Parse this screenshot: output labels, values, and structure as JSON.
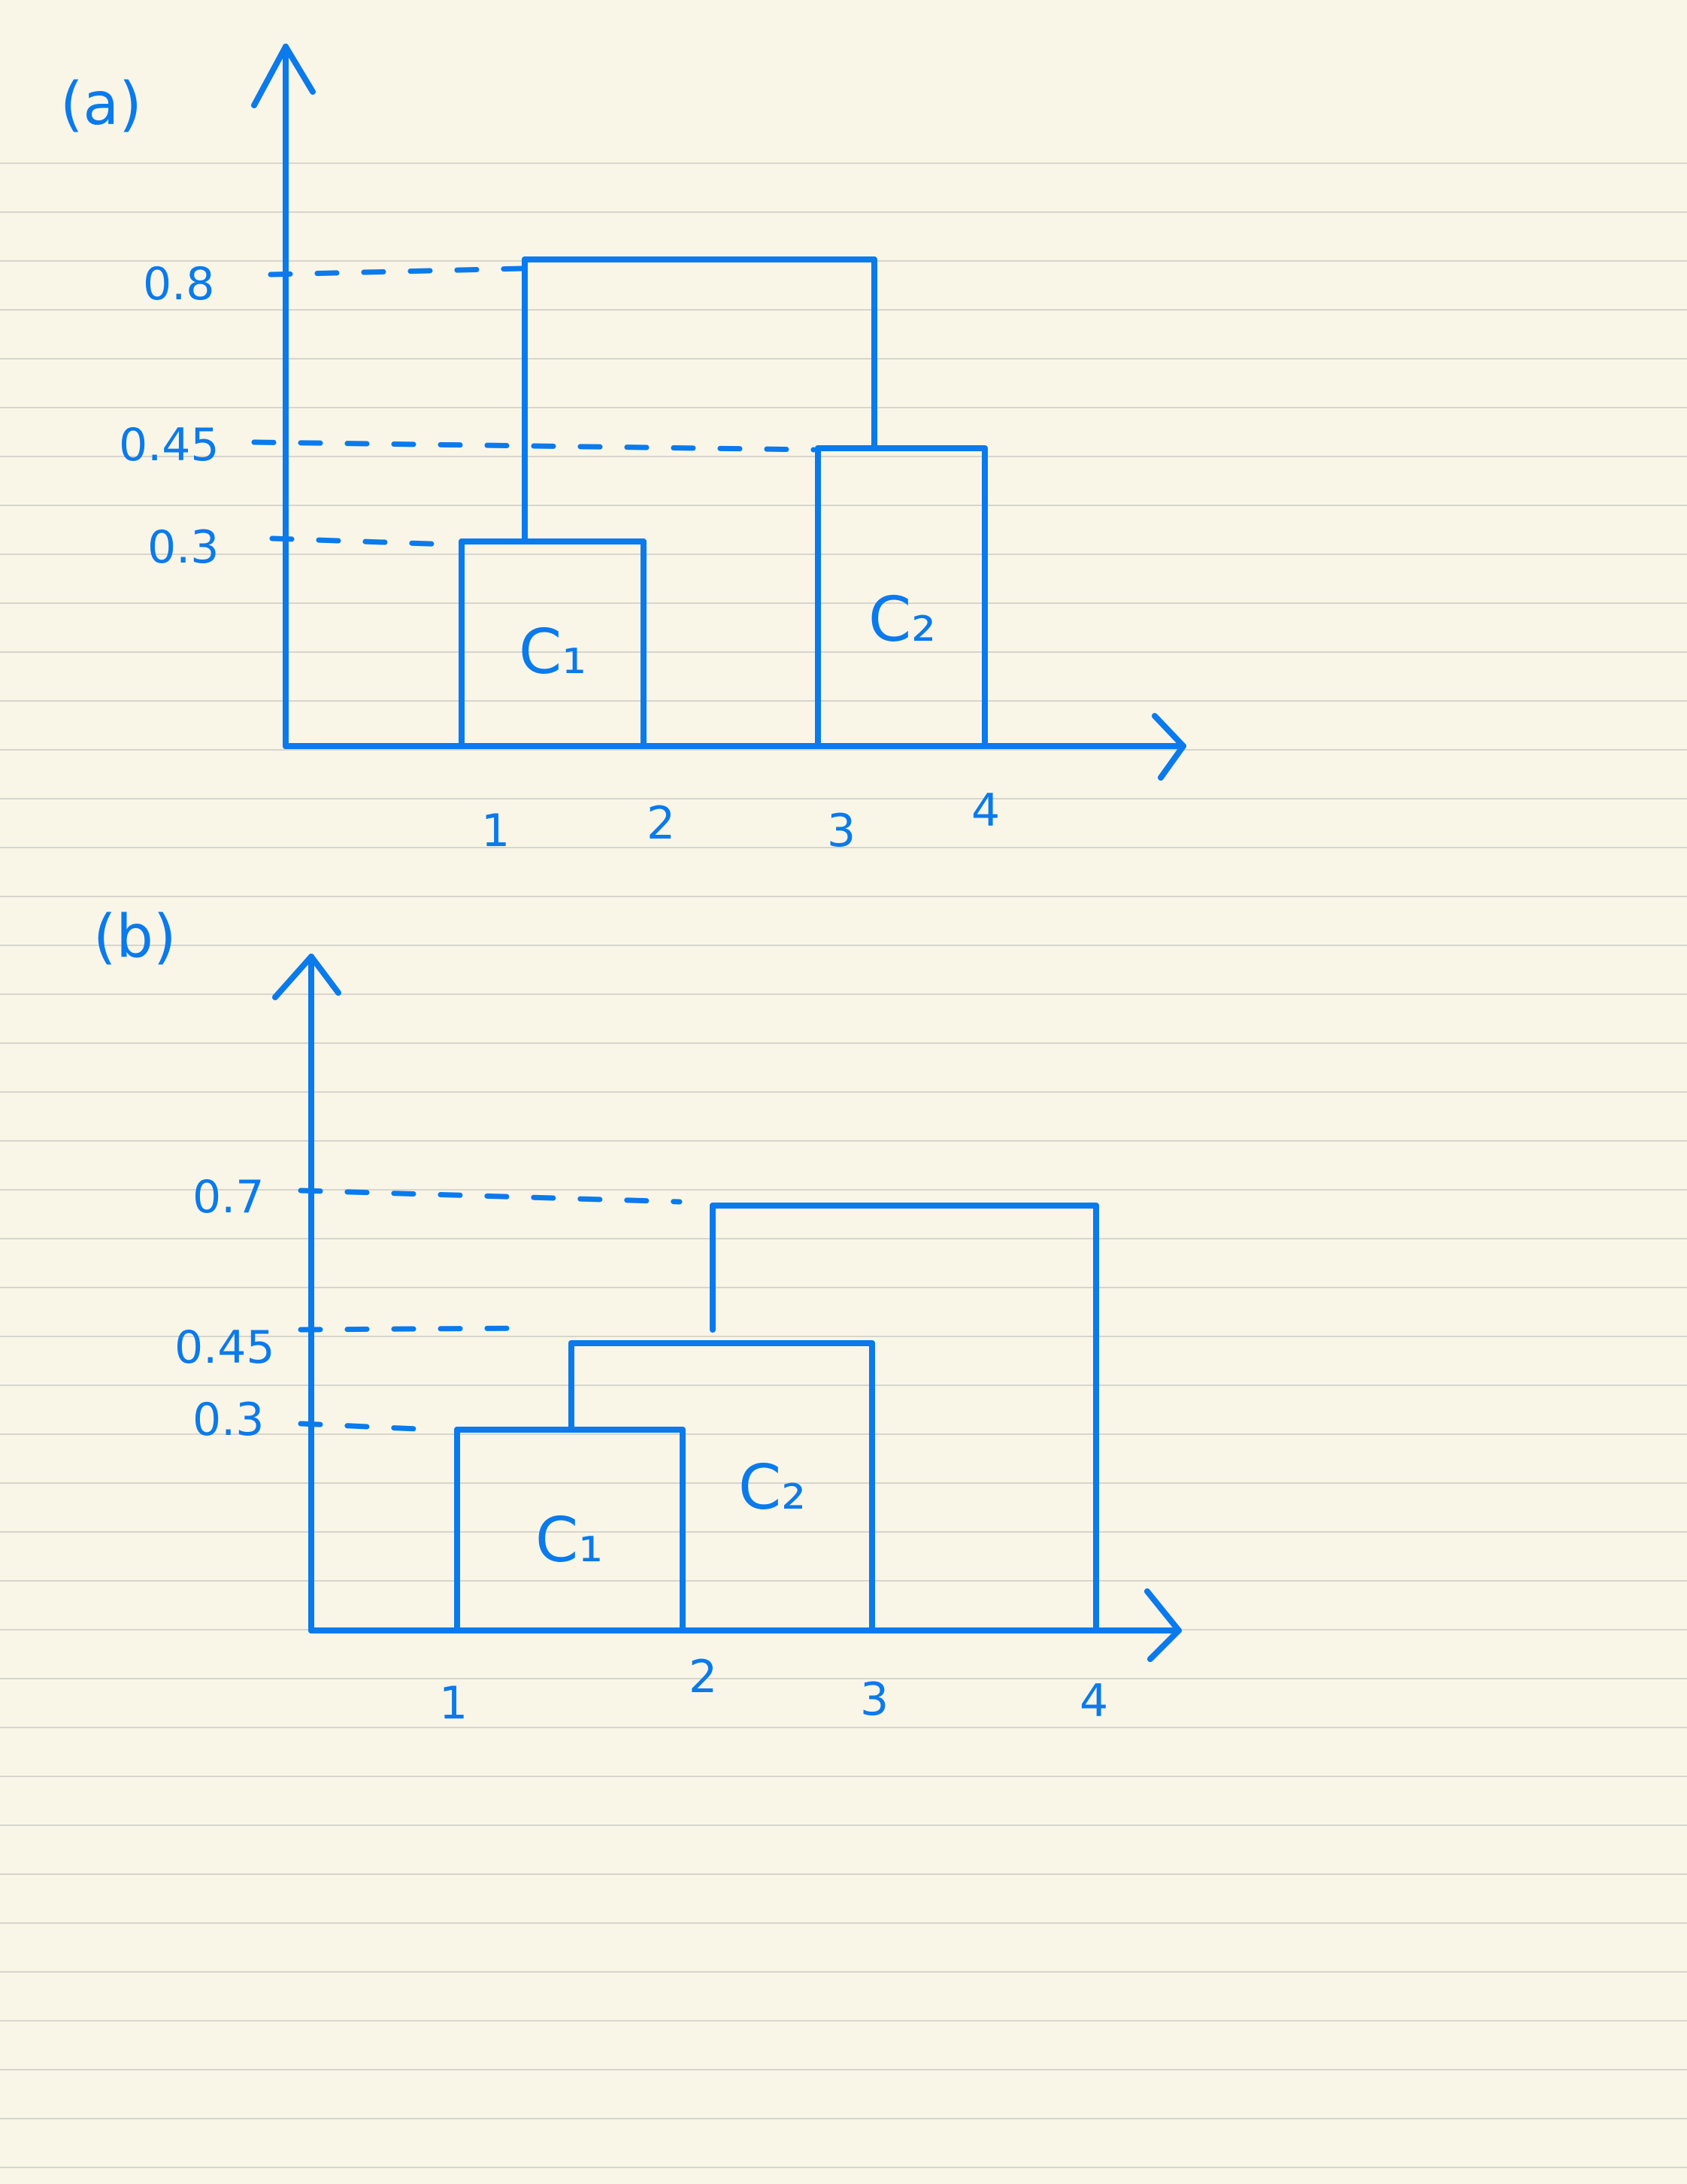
{
  "panels": [
    {
      "id": "a",
      "label": "(a)",
      "y_ticks": [
        "0.8",
        "0.45",
        "0.3"
      ],
      "x_ticks": [
        "1",
        "2",
        "3",
        "4"
      ],
      "clusters": [
        {
          "label": "C₁",
          "x_range": [
            1,
            2
          ],
          "height": 0.3
        },
        {
          "label": "C₂",
          "x_range": [
            3,
            4
          ],
          "height": 0.45
        }
      ],
      "merge_height": 0.8
    },
    {
      "id": "b",
      "label": "(b)",
      "y_ticks": [
        "0.7",
        "0.45",
        "0.3"
      ],
      "x_ticks": [
        "1",
        "2",
        "3",
        "4"
      ],
      "clusters": [
        {
          "label": "C₁",
          "x_range": [
            1,
            2
          ],
          "height": 0.3
        },
        {
          "label": "C₂",
          "x_range": [
            1.5,
            3
          ],
          "height": 0.45
        }
      ],
      "merge_height": 0.7
    }
  ]
}
